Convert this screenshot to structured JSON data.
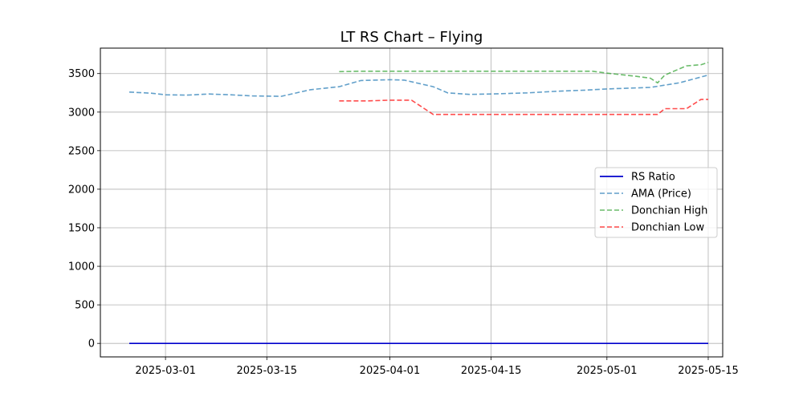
{
  "chart_data": {
    "type": "line",
    "title": "LT RS Chart – Flying",
    "xlabel": "",
    "ylabel": "",
    "xlim": [
      "2025-02-20",
      "2025-05-17"
    ],
    "ylim": [
      -175,
      3830
    ],
    "grid": true,
    "legend_position": "center-right",
    "x_ticks": [
      "2025-03-01",
      "2025-03-15",
      "2025-04-01",
      "2025-04-15",
      "2025-05-01",
      "2025-05-15"
    ],
    "y_ticks": [
      0,
      500,
      1000,
      1500,
      2000,
      2500,
      3000,
      3500
    ],
    "series": [
      {
        "name": "RS Ratio",
        "color": "#0000cc",
        "style": "solid",
        "x": [
          "2025-02-24",
          "2025-05-15"
        ],
        "y": [
          0,
          0
        ]
      },
      {
        "name": "AMA (Price)",
        "color": "#1f77b4",
        "style": "dashed",
        "x": [
          "2025-02-24",
          "2025-02-27",
          "2025-03-01",
          "2025-03-04",
          "2025-03-07",
          "2025-03-10",
          "2025-03-13",
          "2025-03-17",
          "2025-03-21",
          "2025-03-25",
          "2025-03-28",
          "2025-04-01",
          "2025-04-03",
          "2025-04-07",
          "2025-04-09",
          "2025-04-12",
          "2025-04-15",
          "2025-04-20",
          "2025-04-24",
          "2025-04-28",
          "2025-05-01",
          "2025-05-07",
          "2025-05-11",
          "2025-05-15"
        ],
        "y": [
          3260,
          3245,
          3225,
          3220,
          3235,
          3225,
          3210,
          3205,
          3290,
          3330,
          3410,
          3420,
          3415,
          3330,
          3250,
          3230,
          3235,
          3250,
          3270,
          3285,
          3300,
          3320,
          3380,
          3480
        ]
      },
      {
        "name": "Donchian High",
        "color": "#2ca02c",
        "style": "dashed",
        "x": [
          "2025-03-25",
          "2025-03-28",
          "2025-04-05",
          "2025-04-15",
          "2025-04-25",
          "2025-04-29",
          "2025-05-01",
          "2025-05-05",
          "2025-05-07",
          "2025-05-08",
          "2025-05-09",
          "2025-05-12",
          "2025-05-14",
          "2025-05-15"
        ],
        "y": [
          3525,
          3530,
          3530,
          3530,
          3530,
          3530,
          3505,
          3465,
          3440,
          3380,
          3480,
          3600,
          3615,
          3645
        ]
      },
      {
        "name": "Donchian Low",
        "color": "#ff0000",
        "style": "dashed",
        "x": [
          "2025-03-25",
          "2025-03-29",
          "2025-04-01",
          "2025-04-04",
          "2025-04-07",
          "2025-04-15",
          "2025-05-01",
          "2025-05-08",
          "2025-05-09",
          "2025-05-12",
          "2025-05-14",
          "2025-05-15"
        ],
        "y": [
          3145,
          3145,
          3155,
          3155,
          2970,
          2970,
          2970,
          2970,
          3045,
          3045,
          3165,
          3165
        ]
      }
    ]
  }
}
